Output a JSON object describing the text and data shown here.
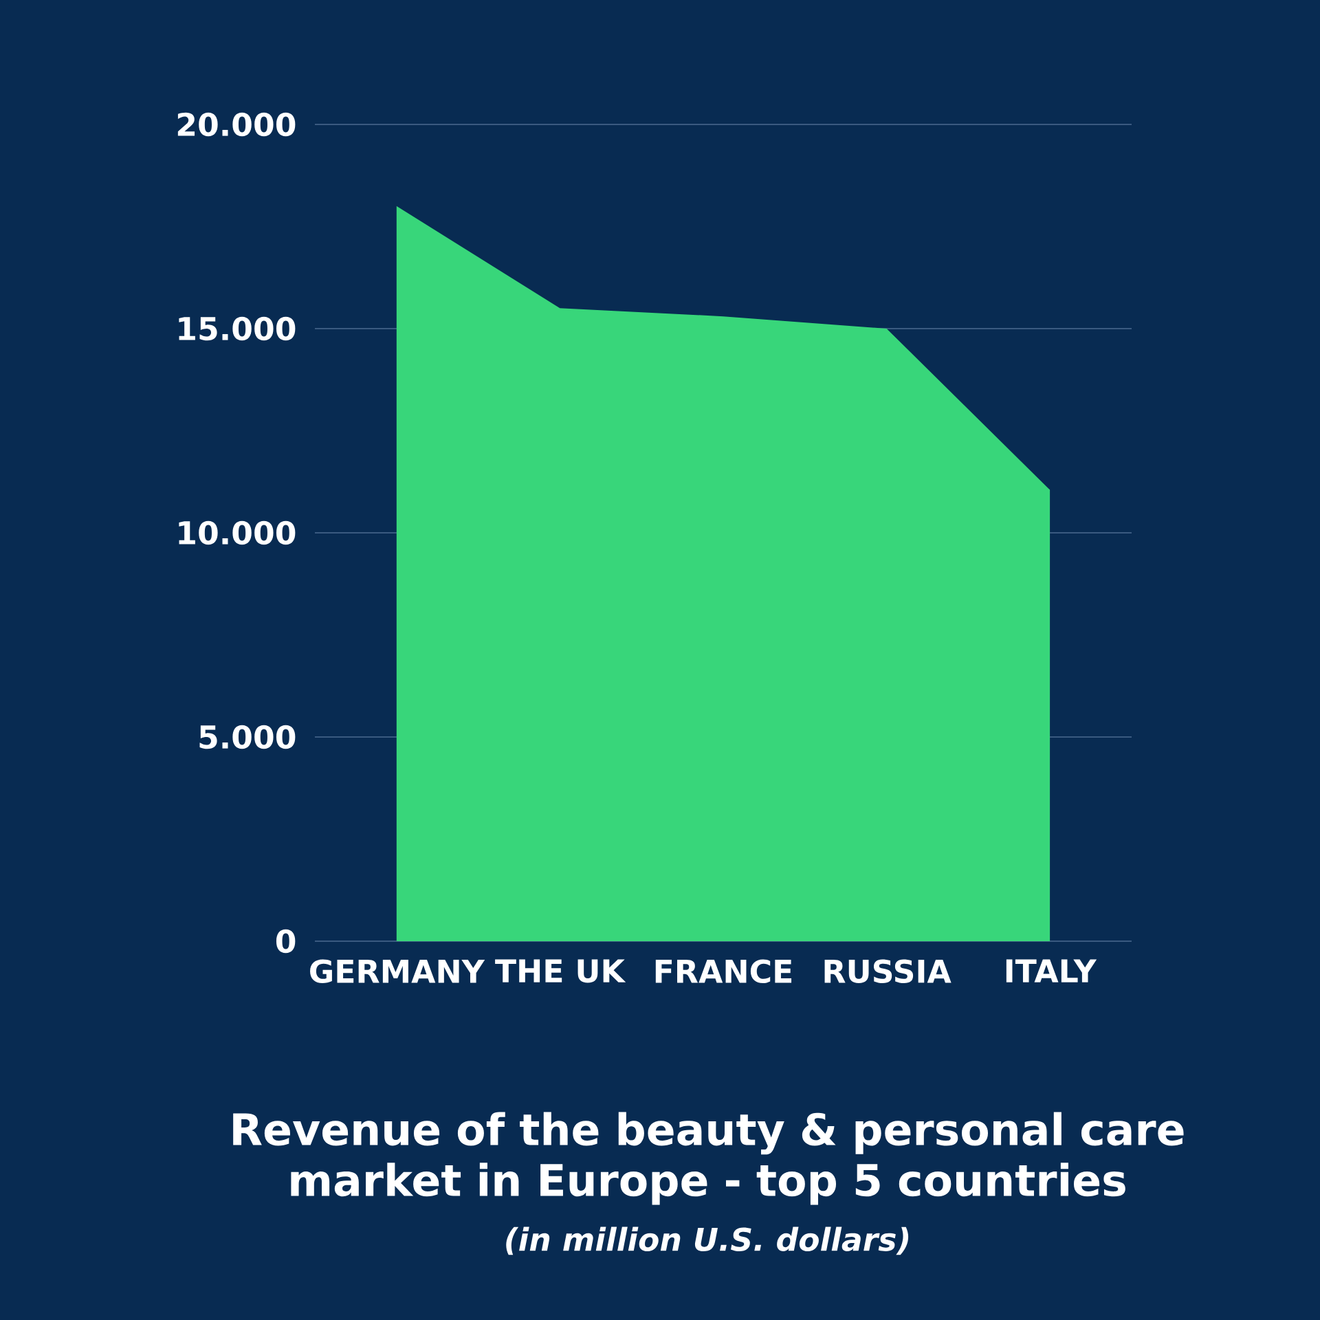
{
  "chart_data": {
    "type": "area",
    "title": "Revenue of the beauty & personal care market in Europe -  top 5 countries",
    "subtitle": "(in million U.S. dollars)",
    "categories": [
      "GERMANY",
      "THE UK",
      "FRANCE",
      "RUSSIA",
      "ITALY"
    ],
    "values": [
      18000,
      15500,
      15300,
      15000,
      11050
    ],
    "color": "#38d67a",
    "ylim": [
      0,
      20000
    ],
    "yticks": [
      {
        "value": 0,
        "label": "0"
      },
      {
        "value": 5000,
        "label": "5.000"
      },
      {
        "value": 10000,
        "label": "10.000"
      },
      {
        "value": 15000,
        "label": "15.000"
      },
      {
        "value": 20000,
        "label": "20.000"
      }
    ],
    "grid": "y"
  }
}
